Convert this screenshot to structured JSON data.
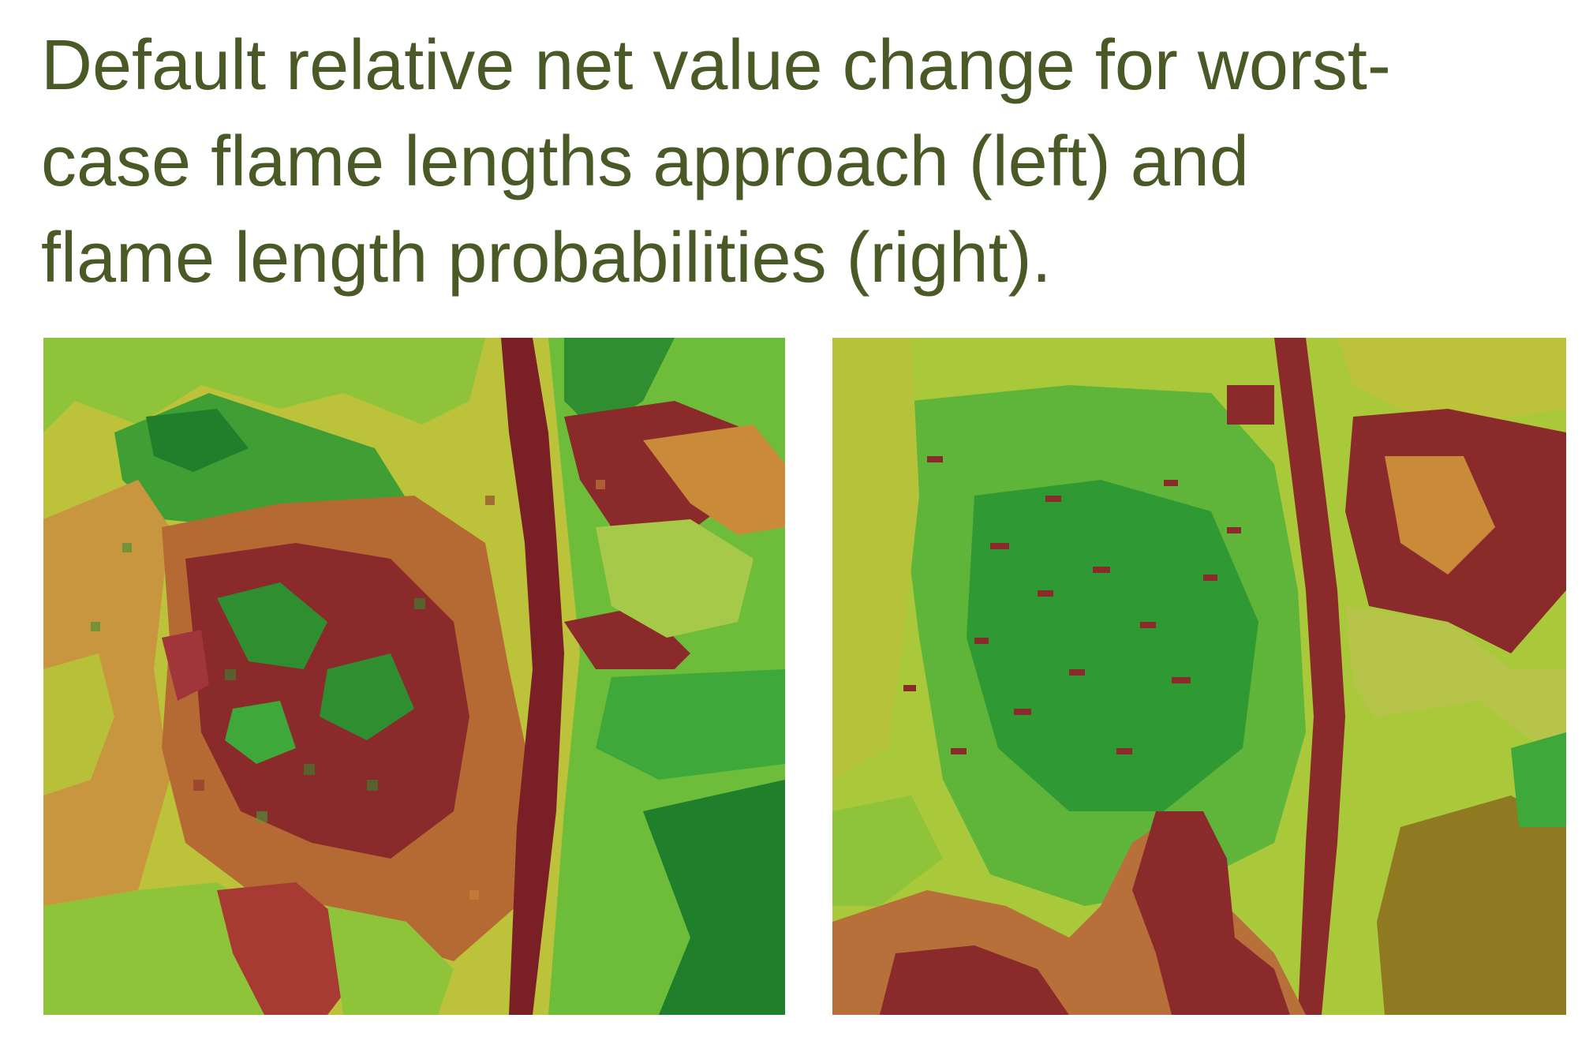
{
  "slide": {
    "title_lines": [
      "Default relative net value change for worst-",
      "case flame lengths approach (left) and",
      "flame length probabilities (right)."
    ]
  },
  "maps": [
    {
      "id": "left",
      "description": "worst-case flame lengths approach",
      "aria": "map-left"
    },
    {
      "id": "right",
      "description": "flame length probabilities",
      "aria": "map-right"
    }
  ],
  "palette": {
    "dark_red": "#8b2a2a",
    "maroon": "#7a1f26",
    "orange_brown": "#c98a3a",
    "tan": "#d49a4a",
    "olive_yellow": "#c2c43c",
    "yellow_green": "#a9c93a",
    "light_green": "#7fcf3a",
    "green": "#3fa83a",
    "dark_green": "#1f7f2a",
    "title_color": "#4a5a27"
  }
}
